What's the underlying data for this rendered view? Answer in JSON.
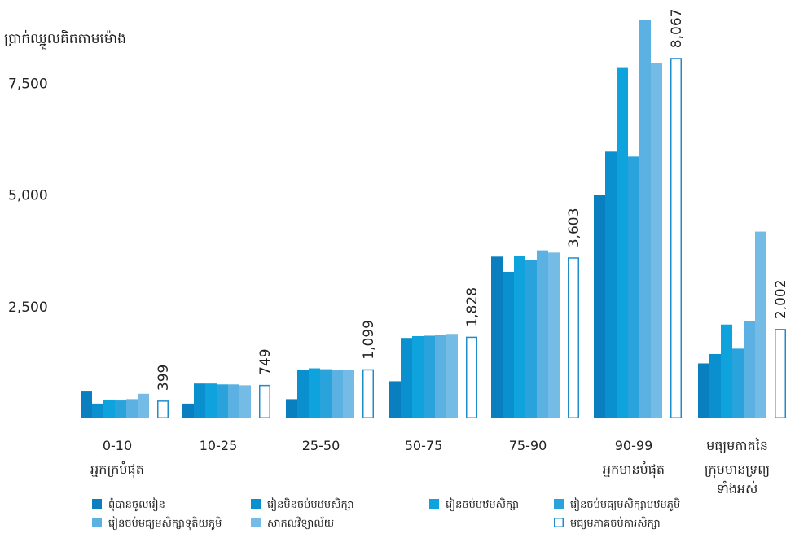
{
  "chart_data": {
    "type": "bar",
    "ylabel": "ប្រាក់ឈ្នួលគិតតាមម៉ោង",
    "ylim": [
      0,
      9000
    ],
    "yticks": [
      2500,
      5000,
      7500
    ],
    "ytick_labels": [
      "2,500",
      "5,000",
      "7,500"
    ],
    "categories": [
      {
        "label": "0-10",
        "sublabel": "អ្នកក្របំផុត"
      },
      {
        "label": "10-25",
        "sublabel": ""
      },
      {
        "label": "25-50",
        "sublabel": ""
      },
      {
        "label": "50-75",
        "sublabel": ""
      },
      {
        "label": "75-90",
        "sublabel": ""
      },
      {
        "label": "90-99",
        "sublabel": "អ្នកមានបំផុត"
      },
      {
        "label": "មធ្យមភាគនៃ",
        "sublabel": "ក្រុមមានទ្រព្យ",
        "sublabel2": "ទាំងអស់"
      }
    ],
    "series": [
      {
        "name": "ពុំបានចូលរៀន",
        "color": "#0a7fc0",
        "outline": false,
        "values": [
          600,
          330,
          430,
          830,
          3620,
          5000,
          1230
        ]
      },
      {
        "name": "រៀនមិនចប់បឋមសិក្សា",
        "color": "#0b90cf",
        "outline": false,
        "values": [
          330,
          780,
          1090,
          1800,
          3280,
          5970,
          1440
        ]
      },
      {
        "name": "រៀនចប់បឋមសិក្សា",
        "color": "#0ea3dc",
        "outline": false,
        "values": [
          420,
          780,
          1120,
          1840,
          3640,
          7860,
          2100
        ]
      },
      {
        "name": "រៀនចប់មធ្យមសិក្សាបឋមភូមិ",
        "color": "#2aa3dc",
        "outline": false,
        "values": [
          400,
          760,
          1100,
          1850,
          3540,
          5860,
          1560
        ]
      },
      {
        "name": "រៀនចប់មធ្យមសិក្សាទុតិយភូមិ",
        "color": "#5bb1e1",
        "outline": false,
        "values": [
          430,
          760,
          1090,
          1870,
          3760,
          8920,
          2180
        ]
      },
      {
        "name": "សាកលវិទ្យាល័យ",
        "color": "#74bce5",
        "outline": false,
        "values": [
          550,
          740,
          1080,
          1890,
          3710,
          7950,
          4180
        ]
      },
      {
        "name": "មធ្យមភាគចប់ការសិក្សា",
        "color": "#1f8ccc",
        "outline": true,
        "values": [
          399,
          749,
          1099,
          1828,
          3603,
          8067,
          2002
        ],
        "labels": [
          "399",
          "749",
          "1,099",
          "1,828",
          "3,603",
          "8,067",
          "2,002"
        ]
      }
    ],
    "legend_position": "bottom",
    "grid": false
  }
}
